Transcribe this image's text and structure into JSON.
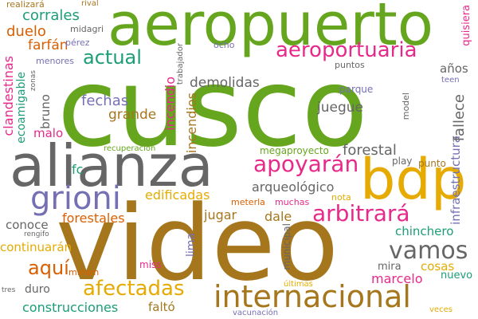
{
  "words": [
    {
      "text": "cusco",
      "color": "#66a61e"
    },
    {
      "text": "video",
      "color": "#a6761d"
    },
    {
      "text": "aeropuerto",
      "color": "#66a61e"
    },
    {
      "text": "alianza",
      "color": "#666666"
    },
    {
      "text": "bdp",
      "color": "#e6ab02"
    },
    {
      "text": "grioni",
      "color": "#7570b3"
    },
    {
      "text": "internacional",
      "color": "#a6761d"
    },
    {
      "text": "aeroportuaria",
      "color": "#e7298a"
    },
    {
      "text": "apoyarán",
      "color": "#e7298a"
    },
    {
      "text": "arbitrará",
      "color": "#e7298a"
    },
    {
      "text": "vamos",
      "color": "#666666"
    },
    {
      "text": "afectadas",
      "color": "#e6ab02"
    },
    {
      "text": "actual",
      "color": "#1b9e77"
    },
    {
      "text": "aquí",
      "color": "#d95f02"
    },
    {
      "text": "infraestructura",
      "color": "#7570b3"
    },
    {
      "text": "fallece",
      "color": "#666666"
    },
    {
      "text": "forestal",
      "color": "#666666"
    },
    {
      "text": "demolidas",
      "color": "#666666"
    },
    {
      "text": "corrales",
      "color": "#1b9e77"
    },
    {
      "text": "duelo",
      "color": "#d95f02"
    },
    {
      "text": "farfán",
      "color": "#d95f02"
    },
    {
      "text": "fechas",
      "color": "#7570b3"
    },
    {
      "text": "grande",
      "color": "#a6761d"
    },
    {
      "text": "incendio",
      "color": "#e7298a"
    },
    {
      "text": "incendios",
      "color": "#a6761d"
    },
    {
      "text": "edificadas",
      "color": "#e6ab02"
    },
    {
      "text": "forestales",
      "color": "#d95f02"
    },
    {
      "text": "jugar",
      "color": "#a6761d"
    },
    {
      "text": "dale",
      "color": "#a6761d"
    },
    {
      "text": "juegue",
      "color": "#666666"
    },
    {
      "text": "arqueológico",
      "color": "#666666"
    },
    {
      "text": "chinchero",
      "color": "#1b9e77"
    },
    {
      "text": "marcelo",
      "color": "#e7298a"
    },
    {
      "text": "cosas",
      "color": "#e6ab02"
    },
    {
      "text": "construcciones",
      "color": "#1b9e77"
    },
    {
      "text": "continuarán",
      "color": "#e6ab02"
    },
    {
      "text": "conoce",
      "color": "#666666"
    },
    {
      "text": "duro",
      "color": "#666666"
    },
    {
      "text": "faltó",
      "color": "#a6761d"
    },
    {
      "text": "malo",
      "color": "#e7298a"
    },
    {
      "text": "bruno",
      "color": "#666666"
    },
    {
      "text": "fc",
      "color": "#1b9e77"
    },
    {
      "text": "lima",
      "color": "#7570b3"
    },
    {
      "text": "años",
      "color": "#666666"
    },
    {
      "text": "quisiera",
      "color": "#e7298a"
    },
    {
      "text": "clandestinas",
      "color": "#e7298a"
    },
    {
      "text": "ecoamigable",
      "color": "#1b9e77"
    },
    {
      "text": "mira",
      "color": "#666666"
    },
    {
      "text": "nuevo",
      "color": "#1b9e77"
    },
    {
      "text": "megaproyecto",
      "color": "#66a61e"
    },
    {
      "text": "parque",
      "color": "#7570b3"
    },
    {
      "text": "puntos",
      "color": "#666666"
    },
    {
      "text": "municipal",
      "color": "#666666"
    },
    {
      "text": "play",
      "color": "#666666"
    },
    {
      "text": "punto",
      "color": "#a6761d"
    },
    {
      "text": "ocho",
      "color": "#7570b3"
    },
    {
      "text": "realizará",
      "color": "#a6761d"
    },
    {
      "text": "rival",
      "color": "#a6761d"
    },
    {
      "text": "midagri",
      "color": "#666666"
    },
    {
      "text": "pérez",
      "color": "#7570b3"
    },
    {
      "text": "menores",
      "color": "#7570b3"
    },
    {
      "text": "trabajador",
      "color": "#666666"
    },
    {
      "text": "zonas",
      "color": "#666666"
    },
    {
      "text": "model",
      "color": "#666666"
    },
    {
      "text": "teen",
      "color": "#7570b3"
    },
    {
      "text": "recuperación",
      "color": "#66a61e"
    },
    {
      "text": "meterla",
      "color": "#d95f02"
    },
    {
      "text": "muchas",
      "color": "#e7298a"
    },
    {
      "text": "nota",
      "color": "#e6ab02"
    },
    {
      "text": "rengifo",
      "color": "#666666"
    },
    {
      "text": "miss",
      "color": "#e7298a"
    },
    {
      "text": "minam",
      "color": "#d95f02"
    },
    {
      "text": "tres",
      "color": "#666666"
    },
    {
      "text": "últimas",
      "color": "#e6ab02"
    },
    {
      "text": "vacunación",
      "color": "#7570b3"
    },
    {
      "text": "veces",
      "color": "#e6ab02"
    }
  ]
}
